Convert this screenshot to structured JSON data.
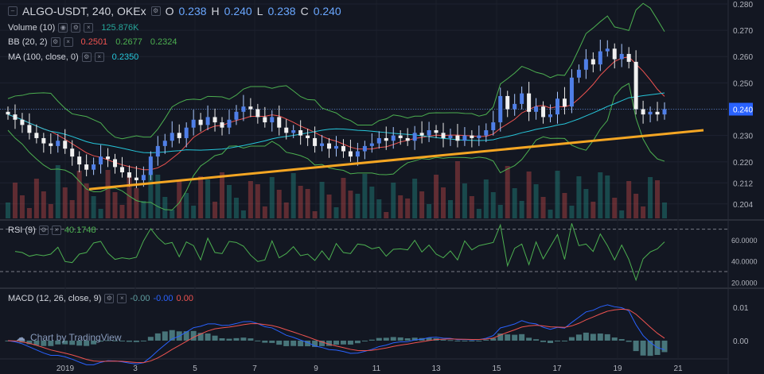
{
  "header": {
    "symbol": "ALGO-USDT, 240, OKEx",
    "o_label": "O",
    "o_value": "0.238",
    "h_label": "H",
    "h_value": "0.240",
    "l_label": "L",
    "l_value": "0.238",
    "c_label": "C",
    "c_value": "0.240"
  },
  "legends": {
    "volume": {
      "name": "Volume (10)",
      "value": "125.876K",
      "color": "#26a69a"
    },
    "bb": {
      "name": "BB (20, 2)",
      "basis": "0.2501",
      "upper": "0.2677",
      "lower": "0.2324",
      "basis_color": "#ef5350",
      "upper_color": "#4caf50",
      "lower_color": "#4caf50"
    },
    "ma": {
      "name": "MA (100, close, 0)",
      "value": "0.2350",
      "color": "#26c6da"
    },
    "rsi": {
      "name": "RSI (9)",
      "value": "40.1748",
      "color": "#4caf50"
    },
    "macd": {
      "name": "MACD (12, 26, close, 9)",
      "hist": "-0.00",
      "macd": "-0.00",
      "signal": "0.00",
      "hist_color": "#5f9ea0",
      "macd_color": "#2962ff",
      "signal_color": "#ef5350"
    }
  },
  "price_badge": "0.240",
  "watermark": "Chart by TradingView",
  "chart_data": {
    "type": "candlestick",
    "x_ticks": [
      "2019",
      "3",
      "5",
      "7",
      "9",
      "11",
      "13",
      "15",
      "17",
      "19",
      "21"
    ],
    "price_axis": {
      "ticks": [
        "0.280",
        "0.270",
        "0.260",
        "0.250",
        "0.240",
        "0.230",
        "0.220",
        "0.212",
        "0.204"
      ],
      "values": [
        0.28,
        0.27,
        0.26,
        0.25,
        0.24,
        0.23,
        0.22,
        0.212,
        0.204
      ]
    },
    "rsi_axis": {
      "ticks": [
        "60.0000",
        "40.0000",
        "20.0000"
      ],
      "values": [
        60,
        40,
        20
      ],
      "bands": [
        70,
        30
      ]
    },
    "macd_axis": {
      "ticks": [
        "0.01",
        "0.00"
      ],
      "values": [
        0.01,
        0.0
      ]
    },
    "trendline": {
      "from": [
        0.0,
        0.2096
      ],
      "to": [
        1.0,
        0.232
      ],
      "color": "#f5a623"
    },
    "candles_seed": [
      0.238,
      0.236,
      0.234,
      0.231,
      0.229,
      0.227,
      0.226,
      0.228,
      0.225,
      0.222,
      0.219,
      0.217,
      0.219,
      0.222,
      0.221,
      0.218,
      0.216,
      0.214,
      0.213,
      0.215,
      0.222,
      0.226,
      0.228,
      0.231,
      0.229,
      0.233,
      0.236,
      0.234,
      0.237,
      0.235,
      0.233,
      0.236,
      0.239,
      0.241,
      0.24,
      0.237,
      0.235,
      0.237,
      0.233,
      0.231,
      0.232,
      0.23,
      0.229,
      0.226,
      0.227,
      0.225,
      0.226,
      0.224,
      0.222,
      0.224,
      0.226,
      0.227,
      0.229,
      0.228,
      0.23,
      0.229,
      0.228,
      0.231,
      0.23,
      0.232,
      0.231,
      0.229,
      0.23,
      0.228,
      0.23,
      0.229,
      0.23,
      0.232,
      0.235,
      0.245,
      0.24,
      0.242,
      0.246,
      0.239,
      0.241,
      0.237,
      0.238,
      0.244,
      0.241,
      0.252,
      0.255,
      0.259,
      0.257,
      0.262,
      0.263,
      0.259,
      0.261,
      0.258,
      0.24,
      0.238,
      0.239,
      0.238,
      0.24
    ]
  }
}
